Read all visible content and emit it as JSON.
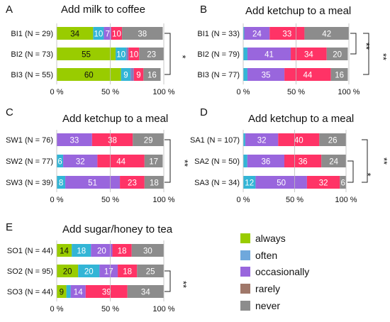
{
  "colors": {
    "always": "#99cc00",
    "often": "#33b5d6",
    "occasionally": "#9966dd",
    "rarely": "#ff3366",
    "never": "#8c8c8c",
    "minor_segment": "#7f7fbf"
  },
  "legend": {
    "items": [
      {
        "label": "always",
        "color": "#99cc00"
      },
      {
        "label": "often",
        "color": "#6fa8dc"
      },
      {
        "label": "occasionally",
        "color": "#9966dd"
      },
      {
        "label": "rarely",
        "color": "#a0786a"
      },
      {
        "label": "never",
        "color": "#8c8c8c"
      }
    ]
  },
  "chart_data": [
    {
      "type": "bar",
      "stacked": "horizontal-100",
      "panel": "A",
      "title": "Add milk to coffee",
      "xlim": [
        0,
        100
      ],
      "ticks": [
        "0 %",
        "50 %",
        "100 %"
      ],
      "categories": [
        "BI1 (N = 29)",
        "BI2 (N = 73)",
        "BI3 (N = 55)"
      ],
      "series": [
        {
          "name": "always",
          "values": [
            34,
            55,
            60
          ]
        },
        {
          "name": "often",
          "values": [
            10,
            10,
            9
          ]
        },
        {
          "name": "occasionally",
          "values": [
            7,
            2,
            3
          ]
        },
        {
          "name": "rarely",
          "values": [
            10,
            10,
            9
          ]
        },
        {
          "name": "never",
          "values": [
            38,
            23,
            16
          ]
        }
      ],
      "labels": [
        [
          "34",
          "10",
          "7",
          "10",
          "38"
        ],
        [
          "55",
          "10",
          "",
          "10",
          "23"
        ],
        [
          "60",
          "9",
          "",
          "9",
          "16"
        ]
      ],
      "significance": [
        {
          "text": "*"
        }
      ]
    },
    {
      "type": "bar",
      "stacked": "horizontal-100",
      "panel": "B",
      "title": "Add ketchup to a meal",
      "xlim": [
        0,
        100
      ],
      "ticks": [
        "0 %",
        "50 %",
        "100 %"
      ],
      "categories": [
        "BI1 (N = 33)",
        "BI2 (N = 79)",
        "BI3 (N = 77)"
      ],
      "series": [
        {
          "name": "always",
          "values": [
            0,
            0,
            0
          ]
        },
        {
          "name": "often",
          "values": [
            1,
            4,
            4
          ]
        },
        {
          "name": "occasionally",
          "values": [
            24,
            41,
            35
          ]
        },
        {
          "name": "rarely",
          "values": [
            33,
            34,
            44
          ]
        },
        {
          "name": "never",
          "values": [
            42,
            20,
            16
          ]
        }
      ],
      "labels": [
        [
          "",
          "",
          "24",
          "33",
          "42"
        ],
        [
          "",
          "",
          "41",
          "34",
          "20"
        ],
        [
          "",
          "",
          "35",
          "44",
          "16"
        ]
      ],
      "significance": [
        {
          "text": "**"
        },
        {
          "text": "**"
        }
      ]
    },
    {
      "type": "bar",
      "stacked": "horizontal-100",
      "panel": "C",
      "title": "Add ketchup to a meal",
      "xlim": [
        0,
        100
      ],
      "ticks": [
        "0 %",
        "50 %",
        "100 %"
      ],
      "categories": [
        "SW1 (N = 76)",
        "SW2 (N = 77)",
        "SW3 (N = 39)"
      ],
      "series": [
        {
          "name": "always",
          "values": [
            0,
            0,
            0
          ]
        },
        {
          "name": "often",
          "values": [
            0,
            6,
            8
          ]
        },
        {
          "name": "occasionally",
          "values": [
            33,
            32,
            51
          ]
        },
        {
          "name": "rarely",
          "values": [
            38,
            44,
            23
          ]
        },
        {
          "name": "never",
          "values": [
            29,
            17,
            18
          ]
        }
      ],
      "labels": [
        [
          "",
          "",
          "33",
          "38",
          "29"
        ],
        [
          "",
          "6",
          "32",
          "44",
          "17"
        ],
        [
          "",
          "8",
          "51",
          "23",
          "18"
        ]
      ],
      "significance": [
        {
          "text": "**"
        }
      ]
    },
    {
      "type": "bar",
      "stacked": "horizontal-100",
      "panel": "D",
      "title": "Add ketchup to a meal",
      "xlim": [
        0,
        100
      ],
      "ticks": [
        "0 %",
        "50 %",
        "100 %"
      ],
      "categories": [
        "SA1 (N = 107)",
        "SA2 (N = 50)",
        "SA3 (N = 34)"
      ],
      "series": [
        {
          "name": "always",
          "values": [
            0,
            0,
            0
          ]
        },
        {
          "name": "often",
          "values": [
            2,
            4,
            12
          ]
        },
        {
          "name": "occasionally",
          "values": [
            32,
            36,
            50
          ]
        },
        {
          "name": "rarely",
          "values": [
            40,
            36,
            32
          ]
        },
        {
          "name": "never",
          "values": [
            26,
            24,
            6
          ]
        }
      ],
      "labels": [
        [
          "",
          "",
          "32",
          "40",
          "26"
        ],
        [
          "",
          "",
          "36",
          "36",
          "24"
        ],
        [
          "",
          "12",
          "50",
          "32",
          "6"
        ]
      ],
      "significance": [
        {
          "text": "*"
        },
        {
          "text": "**"
        }
      ]
    },
    {
      "type": "bar",
      "stacked": "horizontal-100",
      "panel": "E",
      "title": "Add sugar/honey to tea",
      "xlim": [
        0,
        100
      ],
      "ticks": [
        "0 %",
        "50 %",
        "100 %"
      ],
      "categories": [
        "SO1 (N = 44)",
        "SO2 (N = 95)",
        "SO3 (N = 44)"
      ],
      "series": [
        {
          "name": "always",
          "values": [
            14,
            20,
            9
          ]
        },
        {
          "name": "often",
          "values": [
            18,
            20,
            4
          ]
        },
        {
          "name": "occasionally",
          "values": [
            20,
            17,
            14
          ]
        },
        {
          "name": "rarely",
          "values": [
            18,
            18,
            39
          ]
        },
        {
          "name": "never",
          "values": [
            30,
            25,
            34
          ]
        }
      ],
      "labels": [
        [
          "14",
          "18",
          "20",
          "18",
          "30"
        ],
        [
          "20",
          "20",
          "17",
          "18",
          "25"
        ],
        [
          "9",
          "",
          "14",
          "39",
          "34"
        ]
      ],
      "significance": [
        {
          "text": "**"
        }
      ]
    }
  ]
}
